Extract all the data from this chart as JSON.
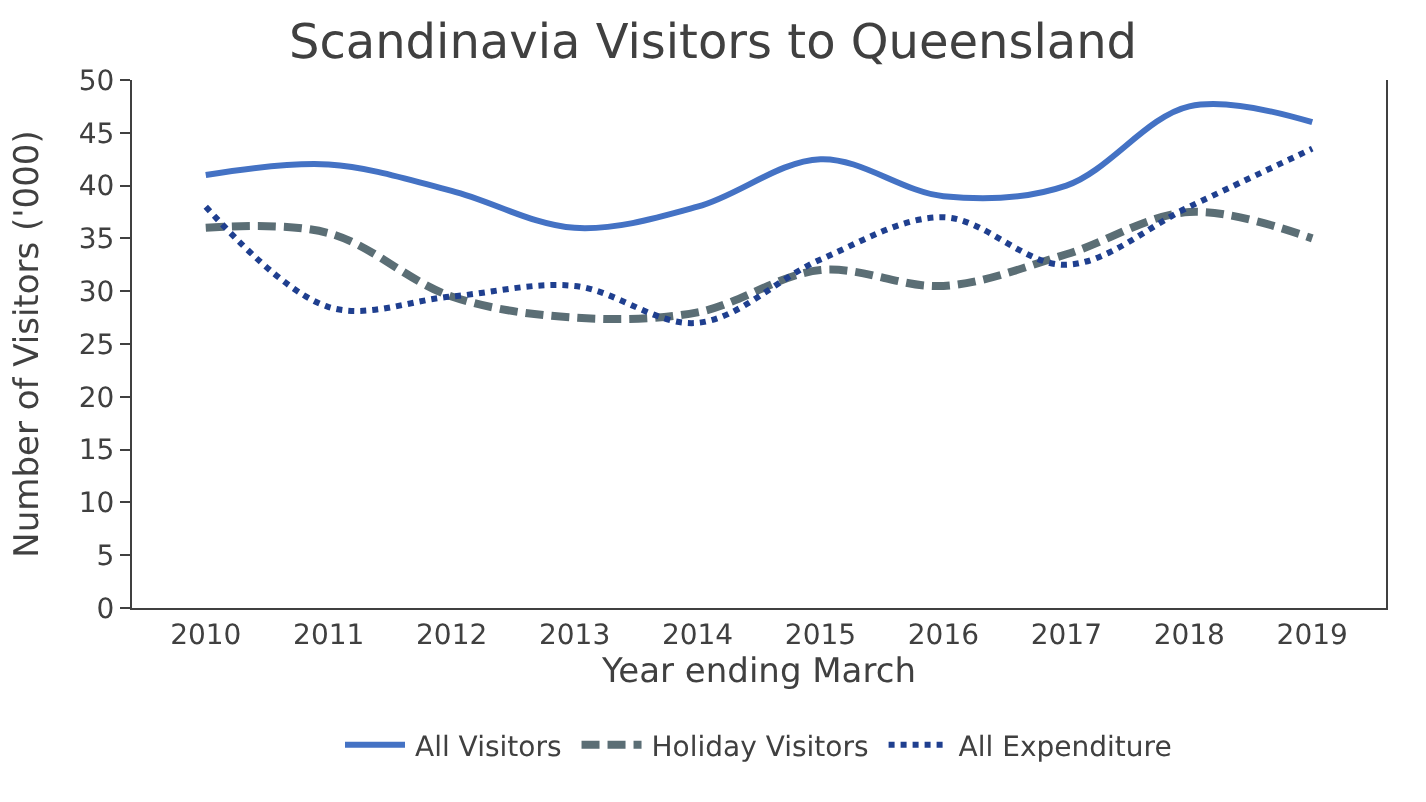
{
  "chart_data": {
    "type": "line",
    "title": "Scandinavia Visitors to Queensland",
    "xlabel": "Year ending March",
    "ylabel": "Number of Visitors ('000)",
    "categories": [
      "2010",
      "2011",
      "2012",
      "2013",
      "2014",
      "2015",
      "2016",
      "2017",
      "2018",
      "2019"
    ],
    "series": [
      {
        "name": "All Visitors",
        "color": "#4472c4",
        "line_style": "solid",
        "values": [
          41,
          42,
          39.5,
          36,
          38,
          42.5,
          39,
          40,
          47.5,
          46
        ]
      },
      {
        "name": "Holiday Visitors",
        "color": "#5b6e75",
        "line_style": "dashed",
        "values": [
          36,
          35.5,
          29.5,
          27.5,
          28,
          32,
          30.5,
          33.5,
          37.5,
          35
        ]
      },
      {
        "name": "All Expenditure",
        "color": "#1f3f8f",
        "line_style": "dotted",
        "values": [
          38,
          28.5,
          29.5,
          30.5,
          27,
          33,
          37,
          32.5,
          38,
          43.5
        ]
      }
    ],
    "ylim": [
      0,
      50
    ],
    "yticks": [
      0,
      5,
      10,
      15,
      20,
      25,
      30,
      35,
      40,
      45,
      50
    ],
    "legend": "bottom",
    "marker": "none"
  }
}
